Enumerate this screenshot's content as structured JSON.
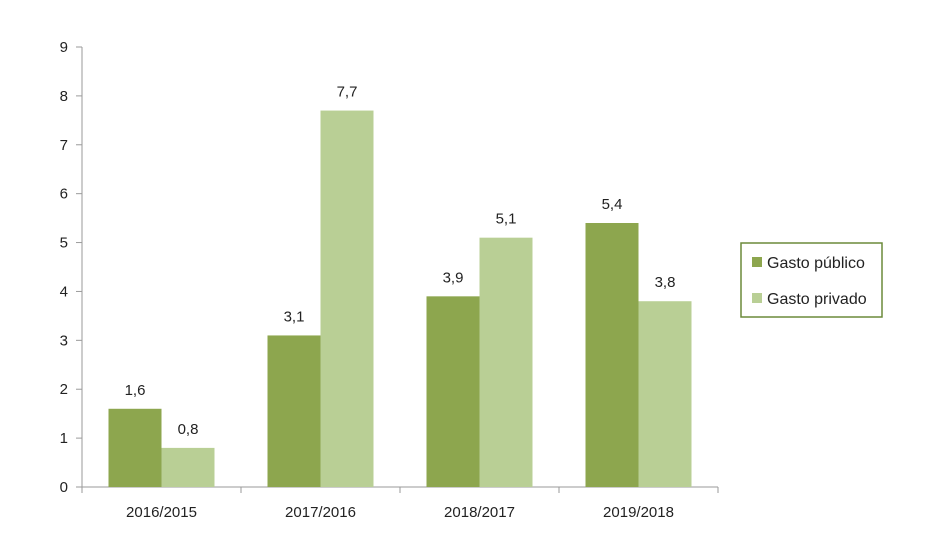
{
  "chart_data": {
    "type": "bar",
    "categories": [
      "2016/2015",
      "2017/2016",
      "2018/2017",
      "2019/2018"
    ],
    "series": [
      {
        "name": "Gasto público",
        "values": [
          1.6,
          3.1,
          3.9,
          5.4
        ],
        "color": "#8da64e"
      },
      {
        "name": "Gasto privado",
        "values": [
          0.8,
          7.7,
          5.1,
          3.8
        ],
        "color": "#b9cf95"
      }
    ],
    "data_labels": [
      [
        "1,6",
        "3,1",
        "3,9",
        "5,4"
      ],
      [
        "0,8",
        "7,7",
        "5,1",
        "3,8"
      ]
    ],
    "y_ticks": [
      "0",
      "1",
      "2",
      "3",
      "4",
      "5",
      "6",
      "7",
      "8",
      "9"
    ],
    "ylim": [
      0,
      9
    ],
    "grid": false,
    "legend_position": "right",
    "legend_border_color": "#6b8a3a",
    "axis_color": "#9a9a9a"
  }
}
